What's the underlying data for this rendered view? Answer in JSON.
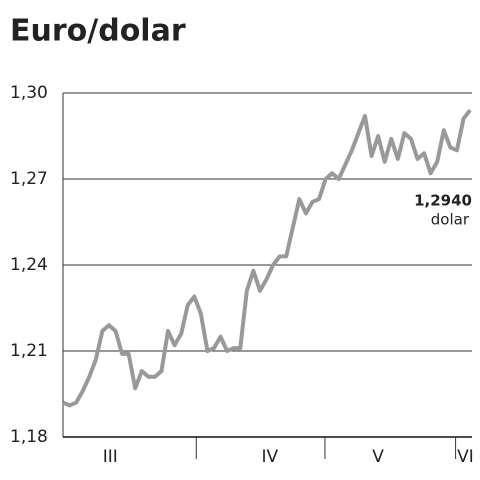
{
  "chart_data": {
    "type": "line",
    "title": "Euro/dolar",
    "x": [
      0,
      1,
      2,
      3,
      4,
      5,
      6,
      7,
      8,
      9,
      10,
      11,
      12,
      13,
      14,
      15,
      16,
      17,
      18,
      19,
      20,
      21,
      22,
      23,
      24,
      25,
      26,
      27,
      28,
      29,
      30,
      31,
      32,
      33,
      34,
      35,
      36,
      37,
      38,
      39,
      40,
      41,
      42,
      43,
      44,
      45,
      46,
      47,
      48,
      49,
      50,
      51,
      52,
      53,
      54,
      55,
      56,
      57,
      58,
      59,
      60,
      61,
      62
    ],
    "series": [
      {
        "color": "#999999",
        "values": [
          1.192,
          1.191,
          1.192,
          1.196,
          1.201,
          1.207,
          1.217,
          1.219,
          1.217,
          1.209,
          1.209,
          1.197,
          1.203,
          1.201,
          1.201,
          1.203,
          1.217,
          1.212,
          1.216,
          1.226,
          1.229,
          1.223,
          1.21,
          1.211,
          1.215,
          1.21,
          1.211,
          1.211,
          1.231,
          1.238,
          1.231,
          1.235,
          1.24,
          1.243,
          1.243,
          1.253,
          1.263,
          1.258,
          1.262,
          1.263,
          1.27,
          1.272,
          1.27,
          1.275,
          1.28,
          1.286,
          1.292,
          1.278,
          1.285,
          1.276,
          1.284,
          1.277,
          1.286,
          1.284,
          1.277,
          1.279,
          1.272,
          1.276,
          1.287,
          1.281,
          1.28,
          1.291,
          1.294
        ]
      }
    ],
    "xlim": [
      0,
      62.3
    ],
    "xticks": [
      {
        "value": 7.2,
        "label": "III"
      },
      {
        "value": 31.5,
        "label": "IV"
      },
      {
        "value": 48,
        "label": "V"
      },
      {
        "value": 61.3,
        "label": "VI"
      }
    ],
    "x_separators": [
      20.3,
      39.9,
      59.8
    ],
    "ylim": [
      1.18,
      1.3
    ],
    "yticks": [
      {
        "value": 1.18,
        "label": "1,18"
      },
      {
        "value": 1.21,
        "label": "1,21"
      },
      {
        "value": 1.24,
        "label": "1,24"
      },
      {
        "value": 1.27,
        "label": "1,27"
      },
      {
        "value": 1.3,
        "label": "1,30"
      }
    ],
    "grid": true,
    "annotation": {
      "value_label": "1,2940",
      "unit": "dolar"
    }
  }
}
